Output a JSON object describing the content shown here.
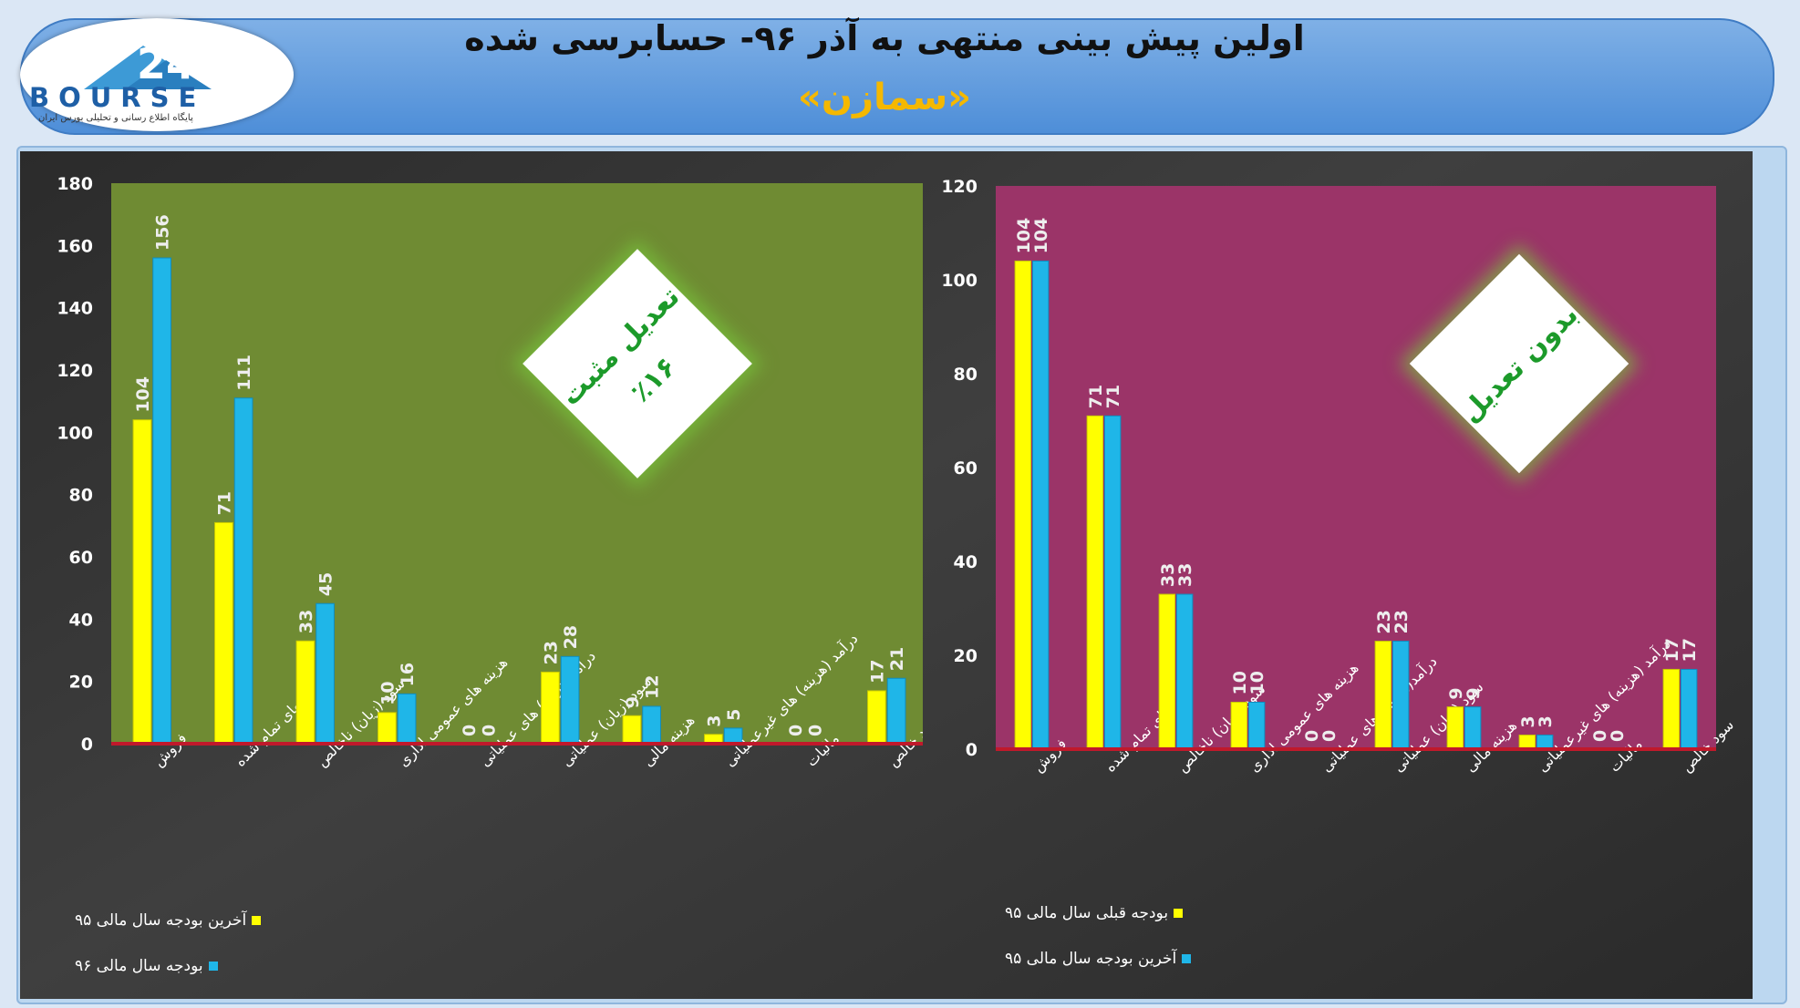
{
  "header": {
    "title": "اولین پیش بینی منتهی به آذر ۹۶- حسابرسی شده",
    "subtitle": "«سمازن»",
    "logo_text": "BOURSE",
    "logo_tagline": "پایگاه اطلاع رسانی و تحلیلی بورس ایران"
  },
  "colors": {
    "series_a": "#ffff00",
    "series_b": "#1fb6e8",
    "left_plot_bg": "#6f8b33",
    "right_plot_bg": "#9b3468",
    "badge_text": "#1c9a2a",
    "title_accent": "#f5b800"
  },
  "chart_data": [
    {
      "type": "bar",
      "position": "left",
      "categories": [
        "فروش",
        "بهای تمام شده",
        "سود (زیان) ناخالص",
        "هزینه های عمومی اداری",
        "درآمد(هزینه) های عملیاتی",
        "سود (زیان) عملیاتی",
        "هزینه مالی",
        "درآمد (هزینه) های غیرعملیاتی",
        "مالیات",
        "سود خالص"
      ],
      "series": [
        {
          "name": "آخرین بودجه سال مالی ۹۵",
          "color": "#ffff00",
          "values": [
            104,
            71,
            33,
            10,
            0,
            23,
            9,
            3,
            0,
            17
          ]
        },
        {
          "name": "بودجه سال مالی ۹۶",
          "color": "#1fb6e8",
          "values": [
            156,
            111,
            45,
            16,
            0,
            28,
            12,
            5,
            0,
            21
          ]
        }
      ],
      "ylim": [
        0,
        180
      ],
      "yticks": [
        0,
        20,
        40,
        60,
        80,
        100,
        120,
        140,
        160,
        180
      ],
      "annotation": [
        "تعدیل مثبت",
        "٪۱۶"
      ],
      "legend_position": "bottom-left"
    },
    {
      "type": "bar",
      "position": "right",
      "categories": [
        "فروش",
        "بهای تمام شده",
        "سود (زیان) ناخالص",
        "هزینه های عمومی اداری",
        "درآمد(هزینه) های عملیاتی",
        "سود (زیان) عملیاتی",
        "هزینه مالی",
        "درآمد (هزینه) های غیرعملیاتی",
        "مالیات",
        "سود خالص"
      ],
      "series": [
        {
          "name": "بودجه قبلی سال مالی ۹۵",
          "color": "#ffff00",
          "values": [
            104,
            71,
            33,
            10,
            0,
            23,
            9,
            3,
            0,
            17
          ]
        },
        {
          "name": "آخرین بودجه سال مالی ۹۵",
          "color": "#1fb6e8",
          "values": [
            104,
            71,
            33,
            10,
            0,
            23,
            9,
            3,
            0,
            17
          ]
        }
      ],
      "ylim": [
        0,
        120
      ],
      "yticks": [
        0,
        20,
        40,
        60,
        80,
        100,
        120
      ],
      "annotation": [
        "بدون تعدیل"
      ],
      "legend_position": "bottom-left"
    }
  ]
}
